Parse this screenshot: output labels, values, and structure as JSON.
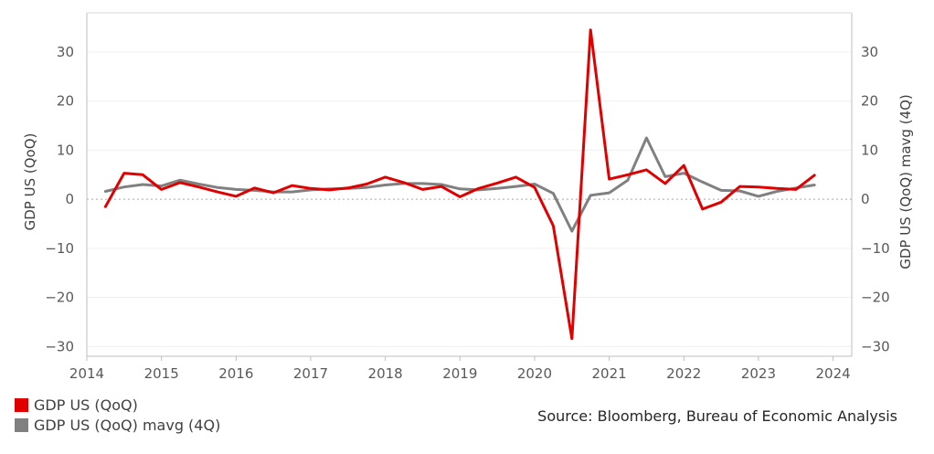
{
  "chart_data": {
    "type": "line",
    "xlim": [
      2014,
      2024.25
    ],
    "ylim": [
      -32,
      38
    ],
    "x_ticks": [
      "2014",
      "2015",
      "2016",
      "2017",
      "2018",
      "2019",
      "2020",
      "2021",
      "2022",
      "2023",
      "2024"
    ],
    "y_ticks": [
      "30",
      "20",
      "10",
      "0",
      "−10",
      "−20",
      "−30"
    ],
    "y2_ticks": [
      "30",
      "20",
      "10",
      "0",
      "−10",
      "−20",
      "−30"
    ],
    "ylabel": "GDP US (QoQ)",
    "y2label": "GDP US (QoQ) mavg (4Q)",
    "x": [
      2014.25,
      2014.5,
      2014.75,
      2015.0,
      2015.25,
      2015.5,
      2015.75,
      2016.0,
      2016.25,
      2016.5,
      2016.75,
      2017.0,
      2017.25,
      2017.5,
      2017.75,
      2018.0,
      2018.25,
      2018.5,
      2018.75,
      2019.0,
      2019.25,
      2019.5,
      2019.75,
      2020.0,
      2020.25,
      2020.5,
      2020.75,
      2021.0,
      2021.25,
      2021.5,
      2021.75,
      2022.0,
      2022.25,
      2022.5,
      2022.75,
      2023.0,
      2023.25,
      2023.5,
      2023.75
    ],
    "series": [
      {
        "name": "GDP US (QoQ)",
        "color": "#e00000",
        "values": [
          -1.5,
          5.3,
          5.0,
          2.0,
          3.4,
          2.5,
          1.5,
          0.6,
          2.3,
          1.3,
          2.8,
          2.2,
          1.9,
          2.3,
          3.1,
          4.5,
          3.4,
          2.0,
          2.6,
          0.5,
          2.2,
          3.3,
          4.5,
          2.4,
          -5.4,
          -28.4,
          34.5,
          4.1,
          5.0,
          6.0,
          3.2,
          6.9,
          -2.0,
          -0.6,
          2.6,
          2.5,
          2.2,
          2.0,
          4.9
        ]
      },
      {
        "name": "GDP US (QoQ) mavg (4Q)",
        "color": "#808080",
        "values": [
          1.6,
          2.5,
          3.0,
          2.7,
          3.9,
          3.1,
          2.4,
          2.0,
          1.8,
          1.5,
          1.5,
          1.9,
          2.1,
          2.2,
          2.4,
          2.9,
          3.2,
          3.2,
          3.0,
          2.1,
          1.9,
          2.2,
          2.6,
          3.1,
          1.2,
          -6.5,
          0.8,
          1.3,
          3.9,
          12.5,
          4.6,
          5.3,
          3.5,
          1.8,
          1.7,
          0.6,
          1.6,
          2.3,
          2.9
        ]
      }
    ],
    "legend": [
      {
        "label": "GDP US (QoQ)",
        "color": "#e00000"
      },
      {
        "label": "GDP US (QoQ) mavg (4Q)",
        "color": "#808080"
      }
    ],
    "source": "Source: Bloomberg, Bureau of Economic Analysis",
    "grid": true,
    "legend_placement": "bottom-left"
  }
}
